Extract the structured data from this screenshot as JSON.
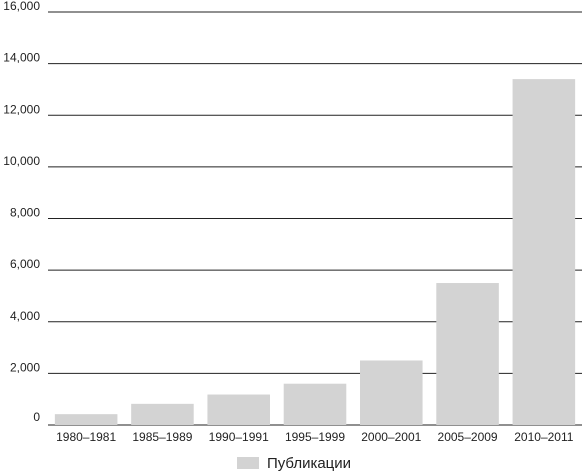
{
  "chart_data": {
    "type": "bar",
    "categories": [
      "1980–1981",
      "1985–1989",
      "1990–1991",
      "1995–1999",
      "2000–2001",
      "2005–2009",
      "2010–2011"
    ],
    "series": [
      {
        "name": "Публикации",
        "values": [
          420,
          820,
          1180,
          1600,
          2500,
          5500,
          13400
        ]
      }
    ],
    "ylim": [
      0,
      16000
    ],
    "yticks": [
      0,
      2000,
      4000,
      6000,
      8000,
      10000,
      12000,
      14000,
      16000
    ],
    "ytick_labels": [
      "0",
      "2,000",
      "4,000",
      "6,000",
      "8,000",
      "10,000",
      "12,000",
      "14,000",
      "16,000"
    ],
    "title": "",
    "xlabel": "",
    "ylabel": "",
    "grid": "horizontal",
    "legend_position": "bottom-center",
    "bar_color": "#d3d3d3",
    "grid_color": "#222222"
  }
}
